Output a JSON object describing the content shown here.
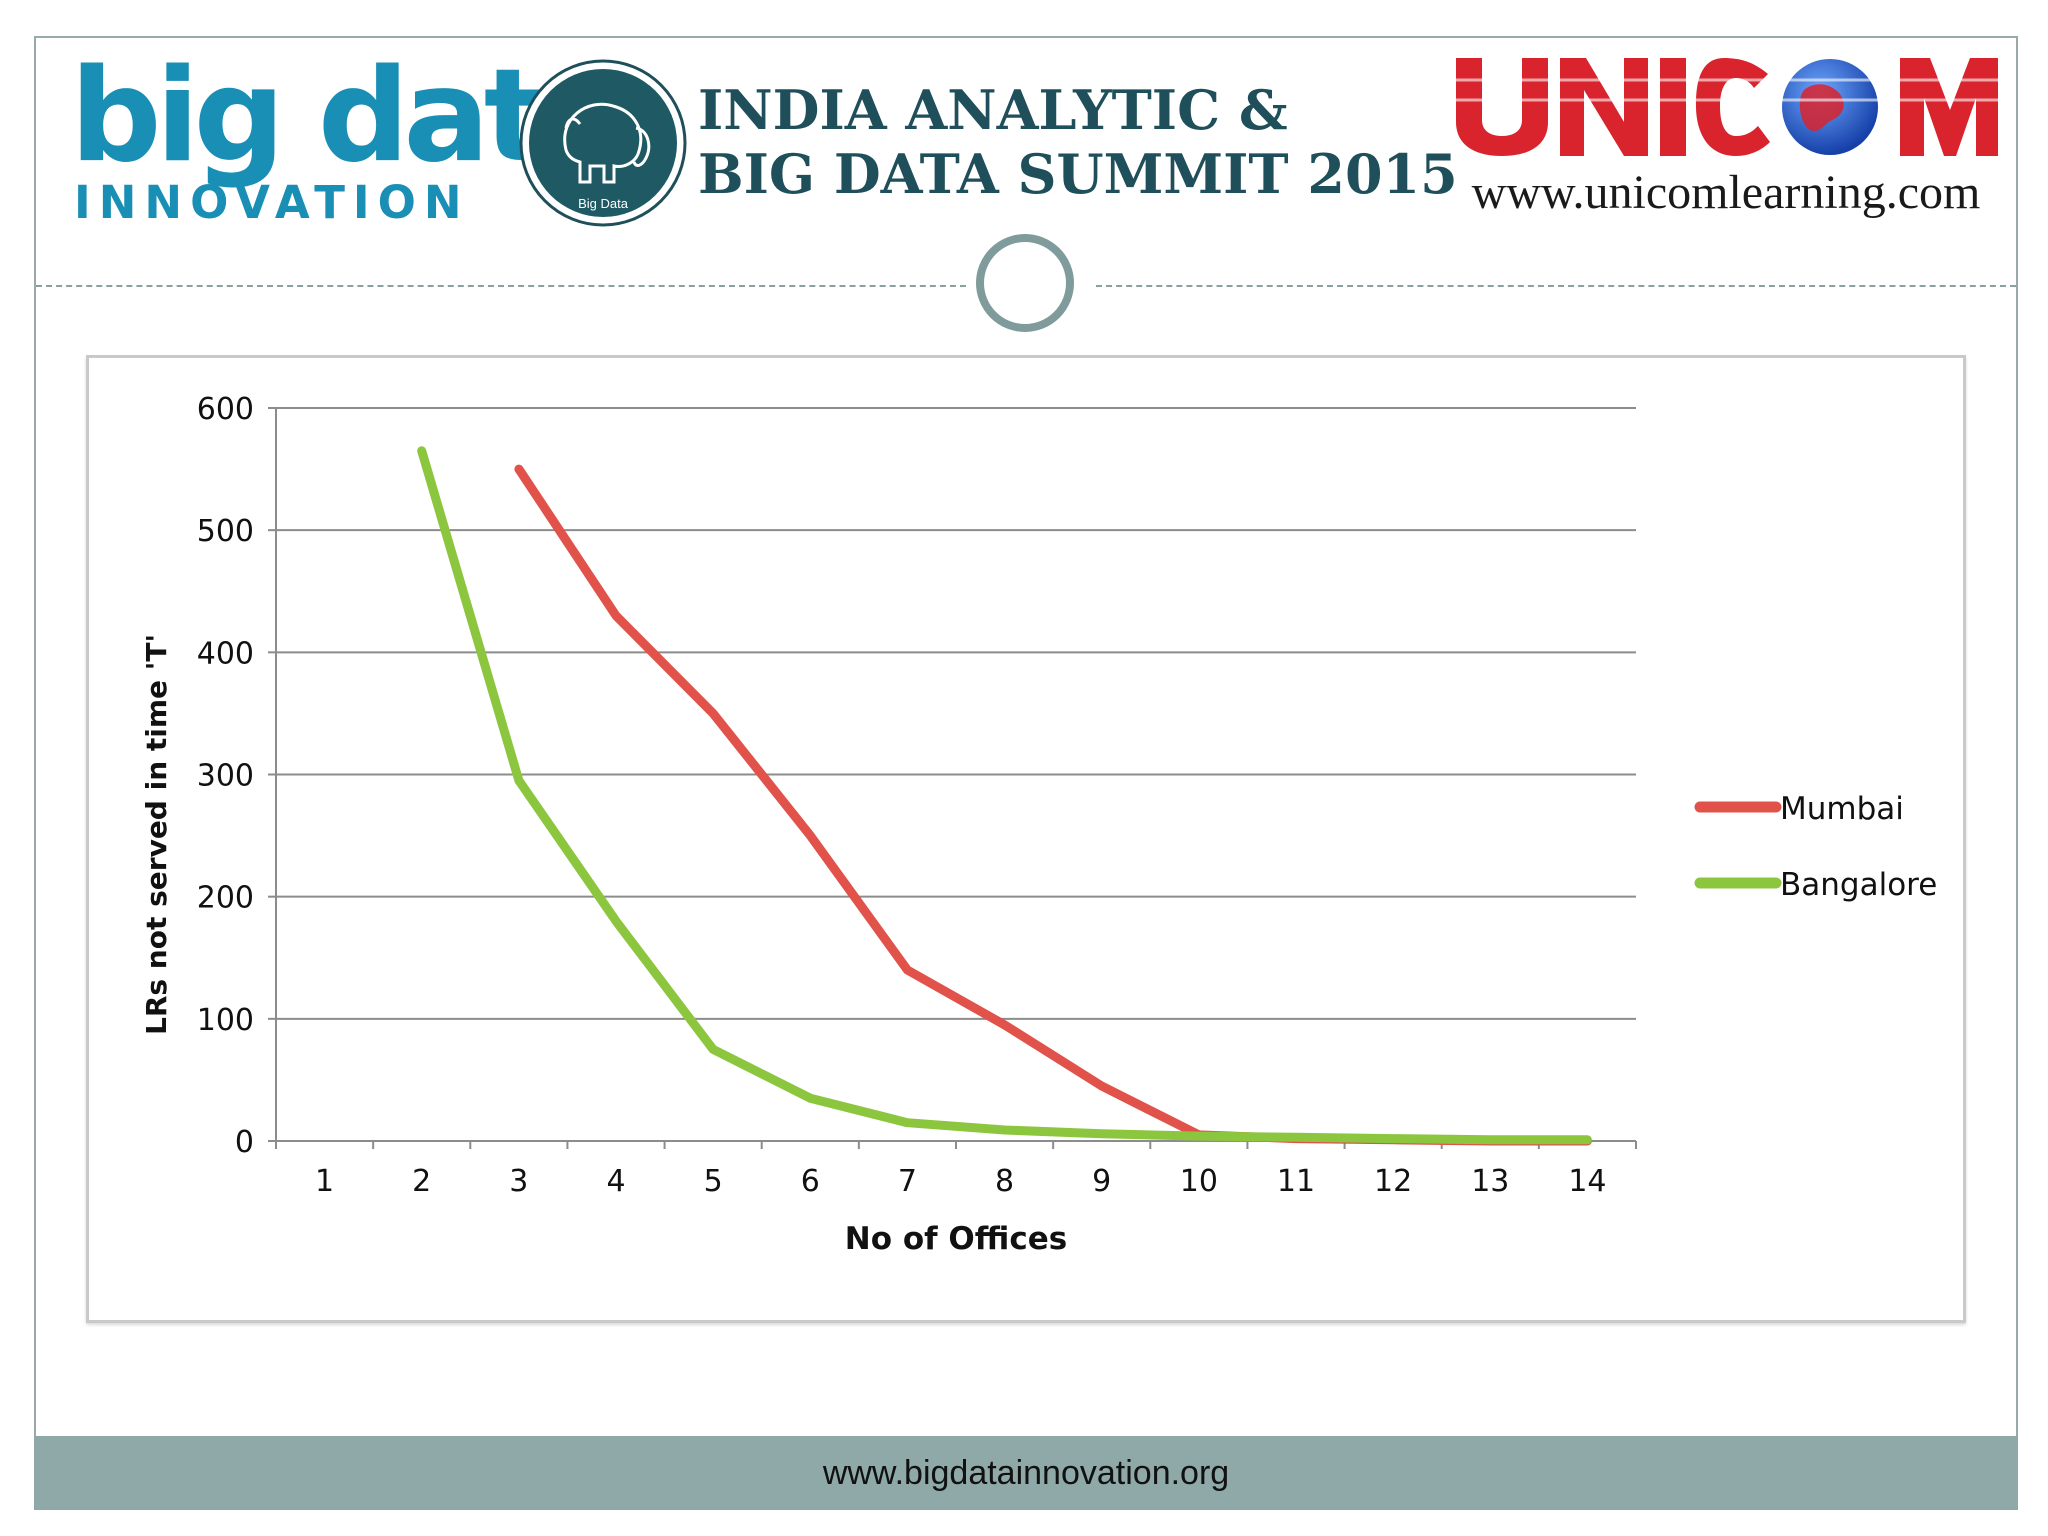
{
  "header": {
    "brand_left_main": "big data",
    "brand_left_sub": "INNOVATION",
    "summit_logo_text": "Big Data",
    "summit_title_line1": "INDIA ANALYTIC &",
    "summit_title_line2": "BIG DATA SUMMIT 2015",
    "unicom_logo_text": "UNICOM",
    "unicom_url": "www.unicomlearning.com"
  },
  "footer": {
    "url": "www.bigdatainnovation.org"
  },
  "colors": {
    "mumbai": "#e0524a",
    "bangalore": "#8cc63f",
    "grid": "#8c8c8c",
    "footer_bg": "#8ea9a8",
    "brand_blue": "#1a8fb5",
    "summit_teal": "#1f4f5a",
    "unicom_red": "#d9232d"
  },
  "chart_data": {
    "type": "line",
    "title": "",
    "xlabel": "No of Offices",
    "ylabel": "LRs not served in time 'T'",
    "categories": [
      "1",
      "2",
      "3",
      "4",
      "5",
      "6",
      "7",
      "8",
      "9",
      "10",
      "11",
      "12",
      "13",
      "14"
    ],
    "ylim": [
      0,
      600
    ],
    "yticks": [
      "0",
      "100",
      "200",
      "300",
      "400",
      "500",
      "600"
    ],
    "grid": "horizontal",
    "legend": "right",
    "series": [
      {
        "name": "Mumbai",
        "color": "#e0524a",
        "values": [
          null,
          null,
          550,
          430,
          350,
          250,
          140,
          95,
          45,
          5,
          2,
          1,
          0,
          0
        ]
      },
      {
        "name": "Bangalore",
        "color": "#8cc63f",
        "values": [
          null,
          565,
          295,
          180,
          75,
          35,
          15,
          9,
          6,
          4,
          3,
          2,
          1,
          1
        ]
      }
    ]
  }
}
